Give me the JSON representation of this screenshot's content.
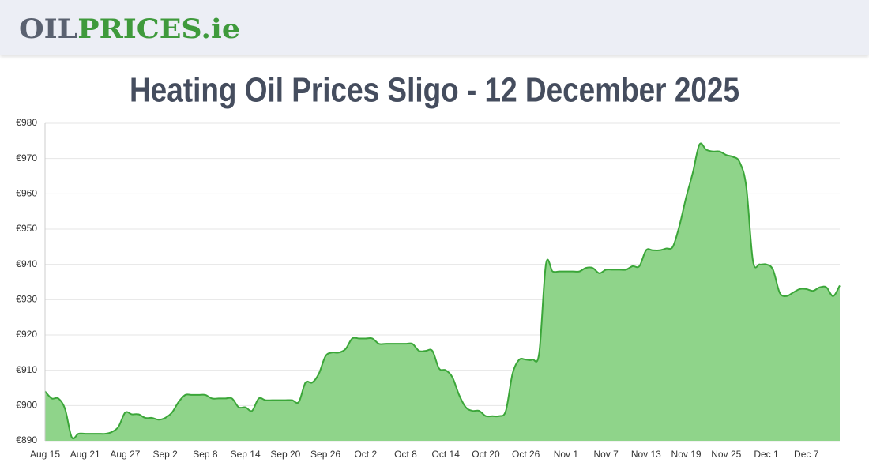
{
  "header": {
    "logo_dark": "OIL",
    "logo_green": "PRICES.ie"
  },
  "chart_data": {
    "type": "area",
    "title": "Heating Oil Prices Sligo - 12 December 2025",
    "categories": [
      "Aug 15",
      null,
      null,
      null,
      null,
      null,
      "Aug 21",
      null,
      null,
      null,
      null,
      null,
      "Aug 27",
      null,
      null,
      null,
      null,
      null,
      "Sep 2",
      null,
      null,
      null,
      null,
      null,
      "Sep 8",
      null,
      null,
      null,
      null,
      null,
      "Sep 14",
      null,
      null,
      null,
      null,
      null,
      "Sep 20",
      null,
      null,
      null,
      null,
      null,
      "Sep 26",
      null,
      null,
      null,
      null,
      null,
      "Oct 2",
      null,
      null,
      null,
      null,
      null,
      "Oct 8",
      null,
      null,
      null,
      null,
      null,
      "Oct 14",
      null,
      null,
      null,
      null,
      null,
      "Oct 20",
      null,
      null,
      null,
      null,
      null,
      "Oct 26",
      null,
      null,
      null,
      null,
      null,
      "Nov 1",
      null,
      null,
      null,
      null,
      null,
      "Nov 7",
      null,
      null,
      null,
      null,
      null,
      "Nov 13",
      null,
      null,
      null,
      null,
      null,
      "Nov 19",
      null,
      null,
      null,
      null,
      null,
      "Nov 25",
      null,
      null,
      null,
      null,
      null,
      "Dec 1",
      null,
      null,
      null,
      null,
      null,
      "Dec 7",
      null,
      null,
      null,
      null,
      null
    ],
    "series": [
      {
        "color": "#3ba639",
        "fill": "#8fd48a",
        "values": [
          904,
          902,
          902,
          899,
          891,
          892,
          892,
          892,
          892,
          892,
          892.5,
          894,
          898,
          897.5,
          897.5,
          896.5,
          896.5,
          896,
          896.5,
          898,
          901,
          903,
          903,
          903,
          903,
          902,
          902,
          902,
          902,
          899.5,
          899.5,
          898.5,
          902,
          901.5,
          901.5,
          901.5,
          901.5,
          901.5,
          901,
          906.5,
          906.5,
          909,
          914,
          915,
          915,
          916,
          919,
          919,
          919,
          919,
          917.5,
          917.5,
          917.5,
          917.5,
          917.5,
          917.5,
          915.5,
          915.5,
          915.5,
          910.5,
          910,
          908,
          903,
          899.5,
          898.5,
          898.5,
          897,
          897,
          897,
          898.5,
          909,
          913,
          913,
          913,
          915,
          940,
          938,
          938,
          938,
          938,
          938,
          939,
          939,
          937.5,
          938.5,
          938.5,
          938.5,
          938.5,
          939.5,
          939.5,
          944,
          944,
          944,
          944.5,
          945,
          951,
          959,
          966,
          974,
          972.5,
          972,
          972,
          971,
          970.5,
          969,
          962,
          941,
          940,
          940,
          938.5,
          932,
          931,
          932,
          933,
          933,
          932.5,
          933.5,
          933.5,
          931,
          934
        ]
      }
    ],
    "ylim": [
      890,
      980
    ],
    "yticks": [
      {
        "value": 890,
        "label": "€890"
      },
      {
        "value": 900,
        "label": "€900"
      },
      {
        "value": 910,
        "label": "€910"
      },
      {
        "value": 920,
        "label": "€920"
      },
      {
        "value": 930,
        "label": "€930"
      },
      {
        "value": 940,
        "label": "€940"
      },
      {
        "value": 950,
        "label": "€950"
      },
      {
        "value": 960,
        "label": "€960"
      },
      {
        "value": 970,
        "label": "€970"
      },
      {
        "value": 980,
        "label": "€980"
      }
    ],
    "grid": true
  }
}
